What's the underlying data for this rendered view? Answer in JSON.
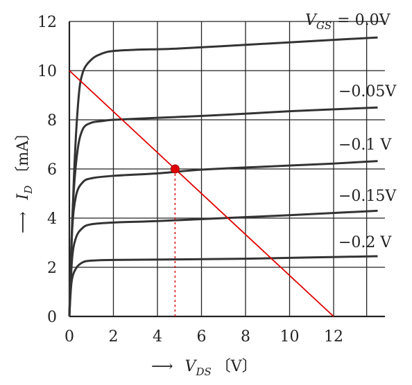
{
  "chart_data": {
    "type": "line",
    "xlabel": {
      "symbol": "V",
      "subscript": "DS",
      "unit": "〔V〕"
    },
    "ylabel": {
      "symbol": "I",
      "subscript": "D",
      "unit": "〔mA〕"
    },
    "xlim": [
      0,
      14
    ],
    "ylim": [
      0,
      12
    ],
    "x_ticks": [
      0,
      2,
      4,
      6,
      8,
      10,
      12
    ],
    "y_ticks": [
      0,
      2,
      4,
      6,
      8,
      10,
      12
    ],
    "grid": true,
    "series": [
      {
        "name": "V_GS = 0.0V",
        "label_prefix": {
          "symbol": "V",
          "subscript": "GS"
        },
        "label": "= 0.0V",
        "points": [
          [
            0,
            0
          ],
          [
            0.2,
            5.5
          ],
          [
            0.4,
            8.7
          ],
          [
            0.6,
            9.9
          ],
          [
            1.0,
            10.45
          ],
          [
            1.5,
            10.7
          ],
          [
            2,
            10.8
          ],
          [
            3,
            10.85
          ],
          [
            5,
            10.9
          ],
          [
            8,
            11.05
          ],
          [
            11,
            11.2
          ],
          [
            14,
            11.35
          ]
        ]
      },
      {
        "name": "-0.05V",
        "label": "−0.05V",
        "points": [
          [
            0,
            0
          ],
          [
            0.15,
            4.3
          ],
          [
            0.35,
            6.6
          ],
          [
            0.6,
            7.6
          ],
          [
            1.0,
            7.88
          ],
          [
            1.5,
            7.95
          ],
          [
            2,
            8.0
          ],
          [
            4,
            8.08
          ],
          [
            7,
            8.2
          ],
          [
            10,
            8.35
          ],
          [
            14,
            8.5
          ]
        ]
      },
      {
        "name": "-0.1 V",
        "label": "−0.1  V",
        "points": [
          [
            0,
            0
          ],
          [
            0.12,
            3.4
          ],
          [
            0.3,
            4.9
          ],
          [
            0.6,
            5.45
          ],
          [
            1.0,
            5.62
          ],
          [
            2,
            5.72
          ],
          [
            4,
            5.82
          ],
          [
            6,
            5.97
          ],
          [
            9,
            6.1
          ],
          [
            12,
            6.22
          ],
          [
            14,
            6.32
          ]
        ]
      },
      {
        "name": "-0.15V",
        "label": "−0.15V",
        "points": [
          [
            0,
            0
          ],
          [
            0.12,
            2.3
          ],
          [
            0.3,
            3.2
          ],
          [
            0.6,
            3.6
          ],
          [
            1.0,
            3.75
          ],
          [
            2,
            3.82
          ],
          [
            4,
            3.88
          ],
          [
            7,
            4.0
          ],
          [
            10,
            4.12
          ],
          [
            14,
            4.3
          ]
        ]
      },
      {
        "name": "-0.2 V",
        "label": "−0.2  V",
        "points": [
          [
            0,
            0
          ],
          [
            0.1,
            1.4
          ],
          [
            0.3,
            1.95
          ],
          [
            0.6,
            2.2
          ],
          [
            1.0,
            2.27
          ],
          [
            2,
            2.3
          ],
          [
            5,
            2.32
          ],
          [
            8,
            2.35
          ],
          [
            11,
            2.4
          ],
          [
            14,
            2.45
          ]
        ]
      }
    ],
    "load_line": {
      "from": [
        0,
        10
      ],
      "to": [
        12,
        0
      ],
      "color": "#e00000"
    },
    "operating_point": {
      "x": 4.8,
      "y": 6.0,
      "color": "#e00000"
    },
    "curve_color": "#333333",
    "grid_color": "#222222"
  }
}
